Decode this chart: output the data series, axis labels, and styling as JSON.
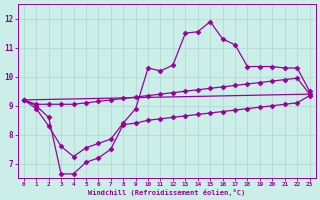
{
  "xlabel": "Windchill (Refroidissement éolien,°C)",
  "bg_color": "#cceee8",
  "line_color": "#990099",
  "xlim": [
    -0.5,
    23.5
  ],
  "ylim": [
    6.5,
    12.5
  ],
  "xticks": [
    0,
    1,
    2,
    3,
    4,
    5,
    6,
    7,
    8,
    9,
    10,
    11,
    12,
    13,
    14,
    15,
    16,
    17,
    18,
    19,
    20,
    21,
    22,
    23
  ],
  "yticks": [
    7,
    8,
    9,
    10,
    11,
    12
  ],
  "line1_x": [
    0,
    1,
    2,
    3,
    4,
    5,
    6,
    7,
    8,
    9,
    10,
    11,
    12,
    13,
    14,
    15,
    16,
    17,
    18,
    19,
    20,
    21,
    22,
    23
  ],
  "line1_y": [
    9.2,
    8.9,
    8.3,
    7.6,
    7.25,
    7.55,
    7.7,
    7.85,
    8.4,
    8.9,
    10.3,
    10.2,
    10.4,
    11.5,
    11.55,
    11.9,
    11.3,
    11.1,
    10.35,
    10.35,
    10.35,
    10.3,
    10.3,
    9.5
  ],
  "line2_x": [
    0,
    1,
    2,
    3,
    4,
    5,
    6,
    7,
    8,
    9,
    10,
    11,
    12,
    13,
    14,
    15,
    16,
    17,
    18,
    19,
    20,
    21,
    22,
    23
  ],
  "line2_y": [
    9.2,
    9.05,
    9.05,
    9.05,
    9.05,
    9.1,
    9.15,
    9.2,
    9.25,
    9.3,
    9.35,
    9.4,
    9.45,
    9.5,
    9.55,
    9.6,
    9.65,
    9.7,
    9.75,
    9.8,
    9.85,
    9.9,
    9.95,
    9.4
  ],
  "line3_x": [
    0,
    23
  ],
  "line3_y": [
    9.2,
    9.4
  ],
  "line4_x": [
    0,
    1,
    2,
    3,
    4,
    5,
    6,
    7,
    8,
    9,
    10,
    11,
    12,
    13,
    14,
    15,
    16,
    17,
    18,
    19,
    20,
    21,
    22,
    23
  ],
  "line4_y": [
    9.2,
    9.0,
    8.6,
    6.65,
    6.65,
    7.05,
    7.2,
    7.5,
    8.35,
    8.4,
    8.5,
    8.55,
    8.6,
    8.65,
    8.7,
    8.75,
    8.8,
    8.85,
    8.9,
    8.95,
    9.0,
    9.05,
    9.1,
    9.35
  ],
  "grid_color": "#aad8d0",
  "marker": "D",
  "markersize": 2.5,
  "linewidth": 0.9
}
